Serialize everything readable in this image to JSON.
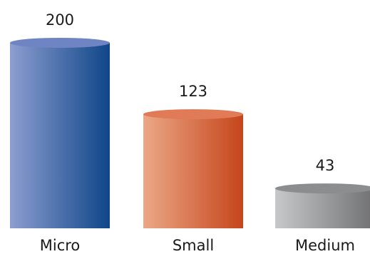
{
  "chart_data": {
    "type": "bar",
    "categories": [
      "Micro",
      "Small",
      "Medium"
    ],
    "values": [
      200,
      123,
      43
    ],
    "ylim": [
      0,
      200
    ],
    "grid": false,
    "data_labels": true,
    "title": "",
    "xlabel": "",
    "ylabel": "",
    "colors": [
      {
        "light": "#8d9dd0",
        "dark": "#0f4688",
        "top": "#6f84c2"
      },
      {
        "light": "#eba886",
        "dark": "#c5451b",
        "top": "#e07a57"
      },
      {
        "light": "#c7c8ca",
        "dark": "#6f7072",
        "top": "#8c8d8f"
      }
    ]
  }
}
